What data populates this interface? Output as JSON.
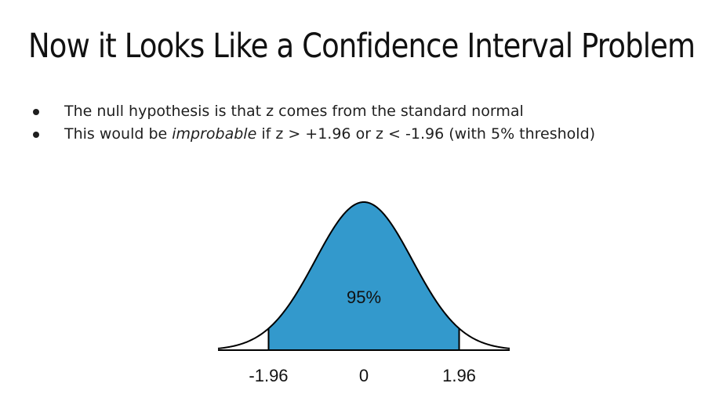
{
  "title": "Now it Looks Like a Confidence Interval Problem",
  "bullets": [
    {
      "text": "The null hypothesis is that z comes from the standard normal"
    },
    {
      "before": "This would be ",
      "emphasis": "improbable",
      "after": " if z > +1.96 or z < -1.96 (with 5% threshold)"
    }
  ],
  "chart_data": {
    "type": "area",
    "distribution": "standard normal",
    "x_range": [
      -3.0,
      3.0
    ],
    "shaded_interval": [
      -1.96,
      1.96
    ],
    "shaded_label": "95%",
    "shaded_color": "#3399cc",
    "curve_color": "#000000",
    "ticks": [
      {
        "value": -1.96,
        "label": "-1.96"
      },
      {
        "value": 0,
        "label": "0"
      },
      {
        "value": 1.96,
        "label": "1.96"
      }
    ],
    "title": "",
    "xlabel": "",
    "ylabel": ""
  }
}
